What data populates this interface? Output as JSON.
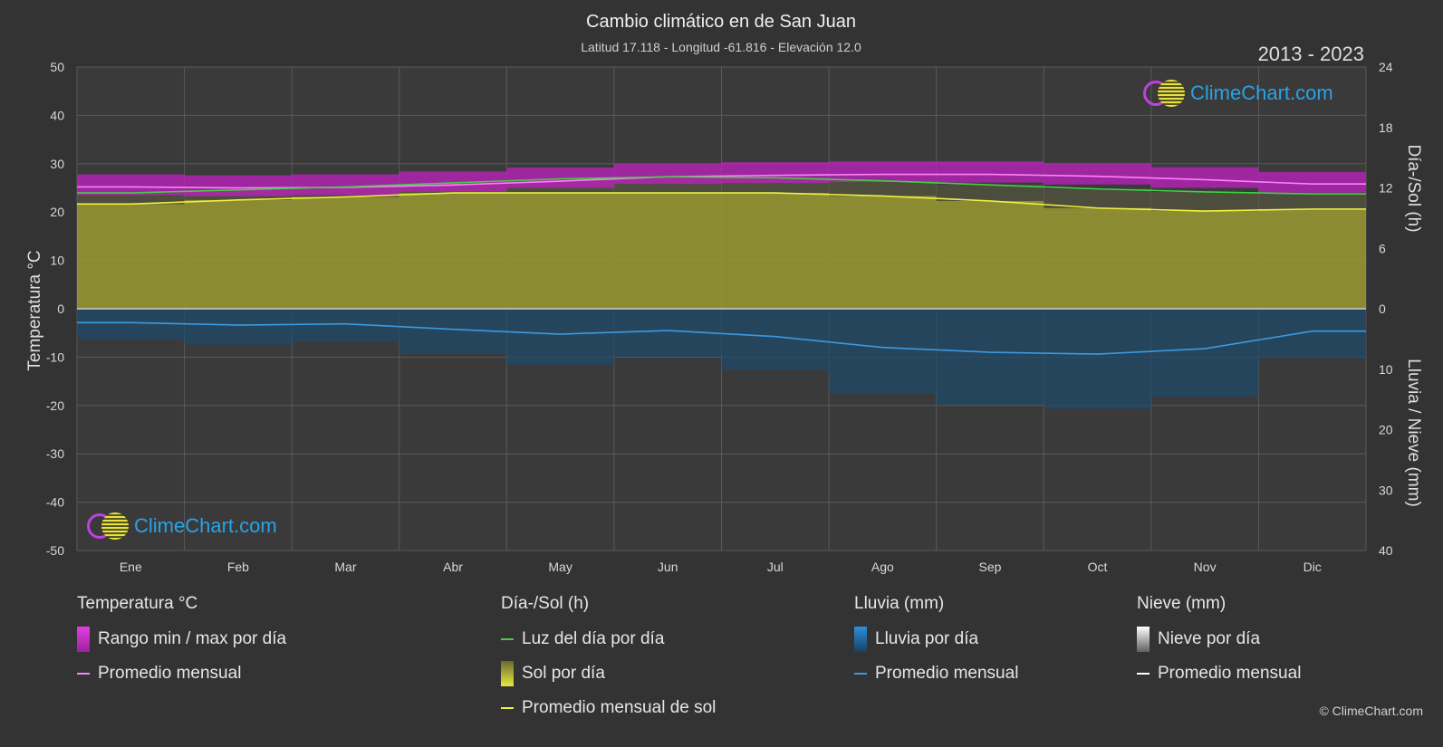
{
  "header": {
    "title": "Cambio climático en de San Juan",
    "subtitle": "Latitud 17.118 - Longitud -61.816 - Elevación 12.0",
    "years": "2013 - 2023"
  },
  "axes": {
    "left_label": "Temperatura °C",
    "right_top_label": "Día-/Sol (h)",
    "right_bottom_label": "Lluvia / Nieve (mm)"
  },
  "logo_text": "ClimeChart.com",
  "copyright": "© ClimeChart.com",
  "legend": {
    "groups": [
      {
        "title": "Temperatura °C",
        "items": [
          {
            "label": "Rango min / max por día",
            "kind": "box",
            "color": "#e040e0"
          },
          {
            "label": "Promedio mensual",
            "kind": "line",
            "color": "#ff80ff"
          }
        ]
      },
      {
        "title": "Día-/Sol (h)",
        "items": [
          {
            "label": "Luz del día por día",
            "kind": "line",
            "color": "#40d040"
          },
          {
            "label": "Sol por día",
            "kind": "box",
            "color": "#d8d840"
          },
          {
            "label": "Promedio mensual de sol",
            "kind": "line",
            "color": "#f0f040"
          }
        ]
      },
      {
        "title": "Lluvia (mm)",
        "items": [
          {
            "label": "Lluvia por día",
            "kind": "box",
            "color": "#2a80c8"
          },
          {
            "label": "Promedio mensual",
            "kind": "line",
            "color": "#3a9ae0"
          }
        ]
      },
      {
        "title": "Nieve (mm)",
        "items": [
          {
            "label": "Nieve por día",
            "kind": "box",
            "color": "#d8d8d8"
          },
          {
            "label": "Promedio mensual",
            "kind": "line",
            "color": "#ffffff"
          }
        ]
      }
    ]
  },
  "chart_data": {
    "type": "line",
    "categories": [
      "Ene",
      "Feb",
      "Mar",
      "Abr",
      "May",
      "Jun",
      "Jul",
      "Ago",
      "Sep",
      "Oct",
      "Nov",
      "Dic"
    ],
    "y_left": {
      "label": "Temperatura °C",
      "ylim": [
        -50,
        50
      ],
      "ticks": [
        50,
        40,
        30,
        20,
        10,
        0,
        -10,
        -20,
        -30,
        -40,
        -50
      ]
    },
    "y_right_top": {
      "label": "Día-/Sol (h)",
      "ylim": [
        0,
        24
      ],
      "ticks": [
        24,
        18,
        12,
        6,
        0
      ]
    },
    "y_right_bottom": {
      "label": "Lluvia / Nieve (mm)",
      "ylim": [
        0,
        40
      ],
      "ticks": [
        10,
        20,
        30,
        40
      ]
    },
    "grid": true,
    "series": [
      {
        "name": "Promedio mensual",
        "axis": "temp",
        "color": "#ff80ff",
        "values": [
          25.2,
          25.0,
          25.1,
          25.6,
          26.4,
          27.3,
          27.6,
          27.8,
          27.8,
          27.4,
          26.7,
          25.8
        ]
      },
      {
        "name": "Rango min / max por día",
        "axis": "temp",
        "kind": "band",
        "color": "#d030d0",
        "low": [
          23.5,
          23.3,
          23.5,
          24.2,
          25.0,
          25.8,
          26.0,
          26.2,
          26.1,
          25.7,
          25.0,
          24.0
        ],
        "high": [
          27.8,
          27.6,
          27.8,
          28.4,
          29.2,
          30.0,
          30.3,
          30.5,
          30.5,
          30.1,
          29.3,
          28.3
        ]
      },
      {
        "name": "Luz del día por día",
        "axis": "sun",
        "color": "#40d040",
        "values": [
          11.5,
          11.8,
          12.1,
          12.5,
          12.9,
          13.1,
          13.0,
          12.7,
          12.3,
          11.9,
          11.6,
          11.4
        ]
      },
      {
        "name": "Promedio mensual de sol",
        "axis": "sun",
        "color": "#f0f040",
        "values": [
          10.4,
          10.8,
          11.1,
          11.5,
          11.5,
          11.5,
          11.5,
          11.2,
          10.7,
          10.0,
          9.7,
          9.9
        ]
      },
      {
        "name": "Promedio mensual",
        "axis": "rain",
        "color": "#3a9ae0",
        "values": [
          2.3,
          2.7,
          2.5,
          3.4,
          4.2,
          3.6,
          4.6,
          6.4,
          7.2,
          7.5,
          6.6,
          3.7
        ]
      }
    ]
  }
}
